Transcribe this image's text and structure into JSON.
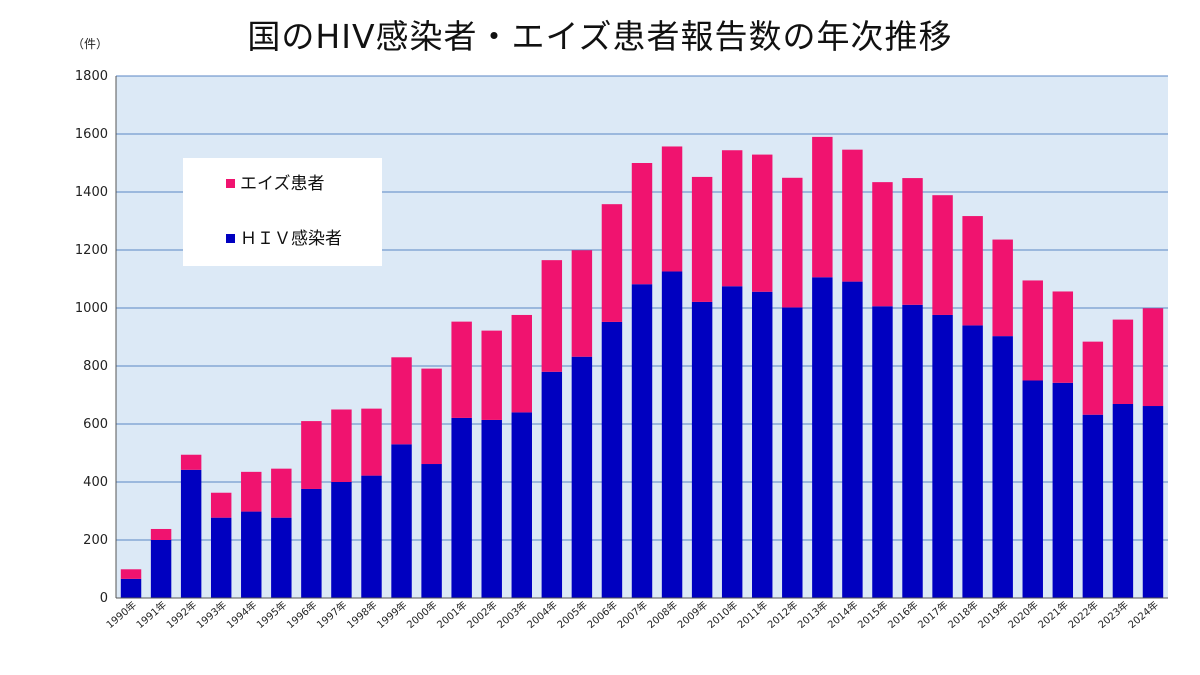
{
  "chart_data": {
    "type": "bar",
    "stacked": true,
    "title": "国のHIV感染者・エイズ患者報告数の年次推移",
    "ylabel": "（件）",
    "xlabel": "",
    "ylim": [
      0,
      1800
    ],
    "yticks": [
      0,
      200,
      400,
      600,
      800,
      1000,
      1200,
      1400,
      1600,
      1800
    ],
    "grid": true,
    "legend_position": "top-left",
    "categories": [
      "1990年",
      "1991年",
      "1992年",
      "1993年",
      "1994年",
      "1995年",
      "1996年",
      "1997年",
      "1998年",
      "1999年",
      "2000年",
      "2001年",
      "2002年",
      "2003年",
      "2004年",
      "2005年",
      "2006年",
      "2007年",
      "2008年",
      "2009年",
      "2010年",
      "2011年",
      "2012年",
      "2013年",
      "2014年",
      "2015年",
      "2016年",
      "2017年",
      "2018年",
      "2019年",
      "2020年",
      "2021年",
      "2022年",
      "2023年",
      "2024年"
    ],
    "series": [
      {
        "name": "ＨＩＶ感染者",
        "color": "#0000c0",
        "values": [
          66,
          200,
          442,
          277,
          298,
          277,
          376,
          400,
          422,
          530,
          462,
          621,
          614,
          640,
          780,
          832,
          952,
          1082,
          1126,
          1021,
          1075,
          1056,
          1002,
          1106,
          1091,
          1006,
          1011,
          976,
          940,
          903,
          750,
          742,
          632,
          669,
          662
        ]
      },
      {
        "name": "エイズ患者",
        "color": "#f0136f",
        "values": [
          33,
          38,
          52,
          86,
          137,
          169,
          234,
          250,
          231,
          300,
          329,
          332,
          308,
          336,
          385,
          367,
          406,
          418,
          431,
          431,
          469,
          473,
          447,
          484,
          455,
          428,
          437,
          413,
          377,
          333,
          345,
          315,
          252,
          291,
          337
        ]
      }
    ]
  },
  "colors": {
    "plot_background": "#dce9f6",
    "gridline": "#5a86c4",
    "legend_background": "#ffffff"
  }
}
